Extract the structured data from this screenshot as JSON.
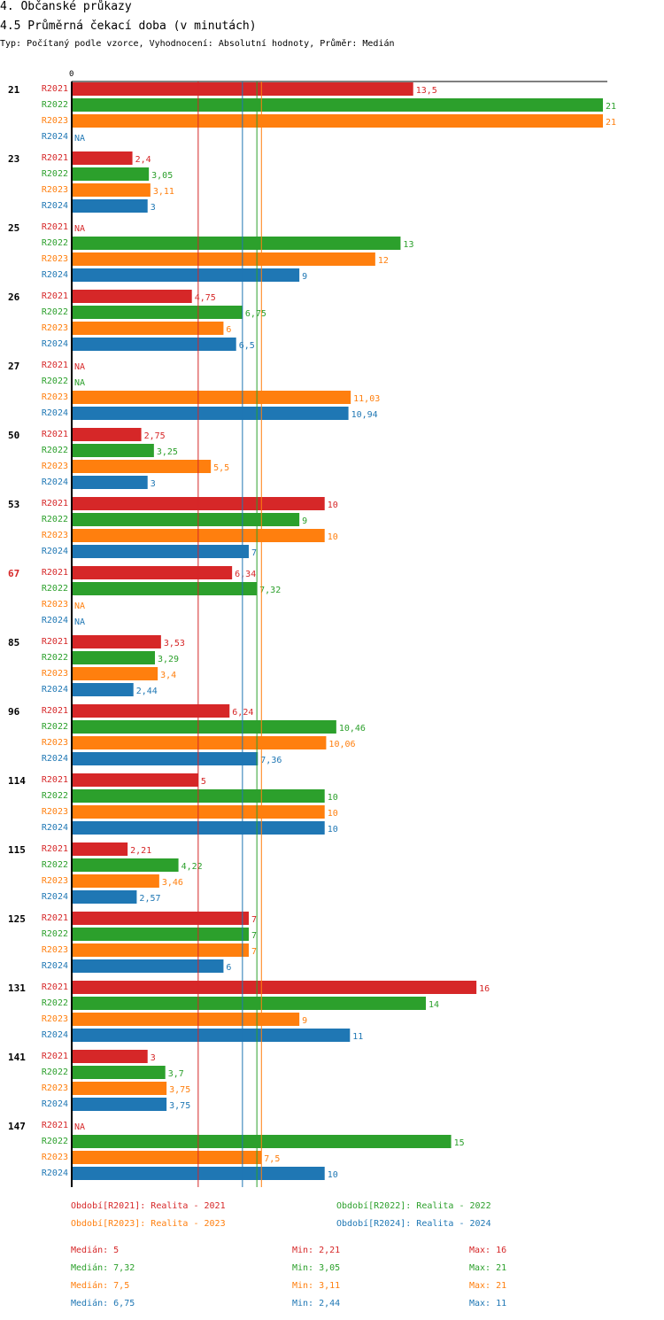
{
  "header": {
    "title": "4. Občanské průkazy",
    "subtitle": "4.5 Průměrná čekací doba (v minutách)",
    "description": "Typ: Počítaný podle vzorce, Vyhodnocení: Absolutní hodnoty, Průměr: Medián"
  },
  "colors": {
    "R2021": "#d62728",
    "R2022": "#2ca02c",
    "R2023": "#ff7f0e",
    "R2024": "#1f77b4"
  },
  "chart_data": {
    "type": "bar",
    "orientation": "horizontal",
    "title": "4.5 Průměrná čekací doba (v minutách)",
    "xlabel": "",
    "ylabel": "",
    "xlim": [
      0,
      21
    ],
    "x_tick_labels": [
      "0"
    ],
    "grid": false,
    "series_names": [
      "R2021",
      "R2022",
      "R2023",
      "R2024"
    ],
    "na_label": "NA",
    "highlighted_category": "67",
    "categories": [
      "21",
      "23",
      "25",
      "26",
      "27",
      "50",
      "53",
      "67",
      "85",
      "96",
      "114",
      "115",
      "125",
      "131",
      "141",
      "147"
    ],
    "series": [
      {
        "name": "R2021",
        "values": [
          13.5,
          2.4,
          null,
          4.75,
          null,
          2.75,
          10,
          6.34,
          3.53,
          6.24,
          5,
          2.21,
          7,
          16,
          3,
          null
        ],
        "labels": [
          "13,5",
          "2,4",
          "NA",
          "4,75",
          "NA",
          "2,75",
          "10",
          "6,34",
          "3,53",
          "6,24",
          "5",
          "2,21",
          "7",
          "16",
          "3",
          "NA"
        ]
      },
      {
        "name": "R2022",
        "values": [
          21,
          3.05,
          13,
          6.75,
          null,
          3.25,
          9,
          7.32,
          3.29,
          10.46,
          10,
          4.22,
          7,
          14,
          3.7,
          15
        ],
        "labels": [
          "21",
          "3,05",
          "13",
          "6,75",
          "NA",
          "3,25",
          "9",
          "7,32",
          "3,29",
          "10,46",
          "10",
          "4,22",
          "7",
          "14",
          "3,7",
          "15"
        ]
      },
      {
        "name": "R2023",
        "values": [
          21,
          3.11,
          12,
          6,
          11.03,
          5.5,
          10,
          null,
          3.4,
          10.06,
          10,
          3.46,
          7,
          9,
          3.75,
          7.5
        ],
        "labels": [
          "21",
          "3,11",
          "12",
          "6",
          "11,03",
          "5,5",
          "10",
          "NA",
          "3,4",
          "10,06",
          "10",
          "3,46",
          "7",
          "9",
          "3,75",
          "7,5"
        ]
      },
      {
        "name": "R2024",
        "values": [
          null,
          3,
          9,
          6.5,
          10.94,
          3,
          7,
          null,
          2.44,
          7.36,
          10,
          2.57,
          6,
          11,
          3.75,
          10
        ],
        "labels": [
          "NA",
          "3",
          "9",
          "6,5",
          "10,94",
          "3",
          "7",
          "NA",
          "2,44",
          "7,36",
          "10",
          "2,57",
          "6",
          "11",
          "3,75",
          "10"
        ]
      }
    ],
    "median_lines": [
      {
        "series": "R2021",
        "value": 5
      },
      {
        "series": "R2022",
        "value": 7.32
      },
      {
        "series": "R2023",
        "value": 7.5
      },
      {
        "series": "R2024",
        "value": 6.75
      }
    ]
  },
  "legend": {
    "r2021": "Období[R2021]: Realita - 2021",
    "r2022": "Období[R2022]: Realita - 2022",
    "r2023": "Období[R2023]: Realita - 2023",
    "r2024": "Období[R2024]: Realita - 2024"
  },
  "stats": [
    {
      "median": "Medián: 5",
      "min": "Min: 2,21",
      "max": "Max: 16"
    },
    {
      "median": "Medián: 7,32",
      "min": "Min: 3,05",
      "max": "Max: 21"
    },
    {
      "median": "Medián: 7,5",
      "min": "Min: 3,11",
      "max": "Max: 21"
    },
    {
      "median": "Medián: 6,75",
      "min": "Min: 2,44",
      "max": "Max: 11"
    }
  ]
}
